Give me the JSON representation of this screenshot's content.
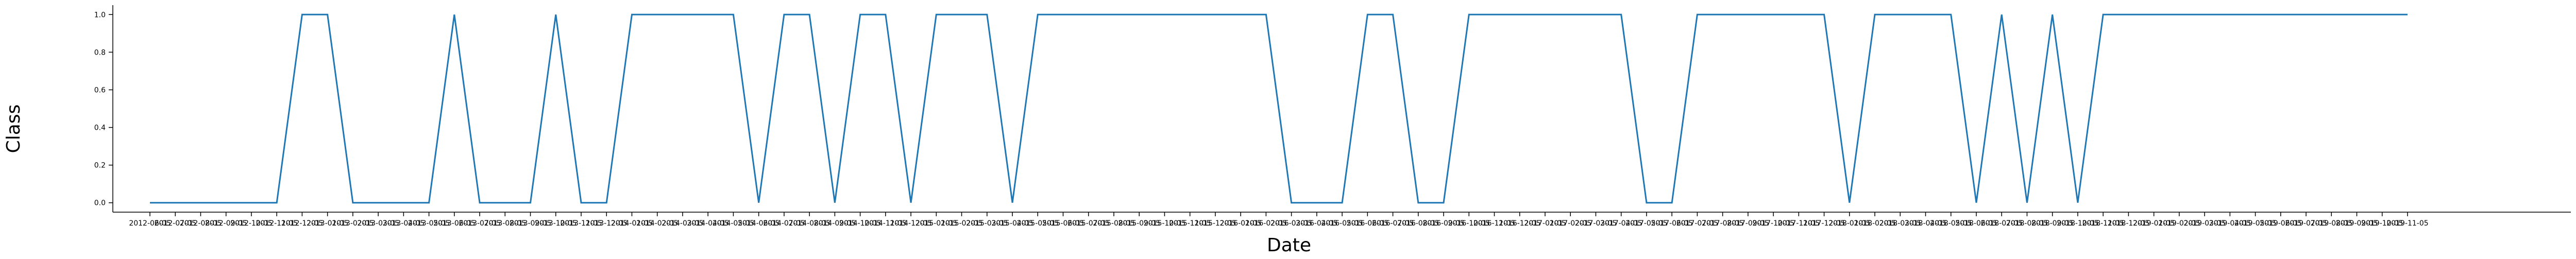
{
  "chart_data": {
    "type": "line",
    "x_label": "Date",
    "y_label": "Class",
    "categories": [
      "2012-06-05",
      "2012-07-05",
      "2012-08-05",
      "2012-09-05",
      "2012-10-05",
      "2012-11-05",
      "2012-12-05",
      "2013-01-05",
      "2013-02-05",
      "2013-03-05",
      "2013-04-05",
      "2013-05-05",
      "2013-06-05",
      "2013-07-05",
      "2013-08-05",
      "2013-09-05",
      "2013-10-05",
      "2013-11-05",
      "2013-12-05",
      "2014-01-05",
      "2014-02-05",
      "2014-03-05",
      "2014-04-05",
      "2014-05-05",
      "2014-06-05",
      "2014-07-05",
      "2014-08-05",
      "2014-09-05",
      "2014-10-05",
      "2014-11-05",
      "2014-12-05",
      "2015-01-05",
      "2015-02-05",
      "2015-03-05",
      "2015-04-05",
      "2015-05-05",
      "2015-06-05",
      "2015-07-05",
      "2015-08-05",
      "2015-09-05",
      "2015-10-05",
      "2015-11-05",
      "2015-12-05",
      "2016-01-05",
      "2016-02-05",
      "2016-03-05",
      "2016-04-05",
      "2016-05-05",
      "2016-06-05",
      "2016-07-05",
      "2016-08-05",
      "2016-09-05",
      "2016-10-05",
      "2016-11-05",
      "2016-12-05",
      "2017-01-05",
      "2017-02-05",
      "2017-03-05",
      "2017-04-05",
      "2017-05-05",
      "2017-06-05",
      "2017-07-05",
      "2017-08-05",
      "2017-09-05",
      "2017-10-05",
      "2017-11-05",
      "2017-12-05",
      "2018-01-05",
      "2018-02-05",
      "2018-03-05",
      "2018-04-05",
      "2018-05-05",
      "2018-06-05",
      "2018-07-05",
      "2018-08-05",
      "2018-09-05",
      "2018-10-05",
      "2018-11-05",
      "2018-12-05",
      "2019-01-05",
      "2019-02-05",
      "2019-03-05",
      "2019-04-05",
      "2019-05-05",
      "2019-06-05",
      "2019-07-05",
      "2019-08-05",
      "2019-09-05",
      "2019-10-05",
      "2019-11-05"
    ],
    "series": [
      {
        "name": "Class",
        "color": "#1f77b4",
        "values": [
          0,
          0,
          0,
          0,
          0,
          0,
          1,
          1,
          0,
          0,
          0,
          0,
          1,
          0,
          0,
          0,
          1,
          0,
          0,
          1,
          1,
          1,
          1,
          1,
          0,
          1,
          1,
          0,
          1,
          1,
          0,
          1,
          1,
          1,
          0,
          1,
          1,
          1,
          1,
          1,
          1,
          1,
          1,
          1,
          1,
          0,
          0,
          0,
          1,
          1,
          0,
          0,
          1,
          1,
          1,
          1,
          1,
          1,
          1,
          0,
          0,
          1,
          1,
          1,
          1,
          1,
          1,
          0,
          1,
          1,
          1,
          1,
          0,
          1,
          0,
          1,
          0,
          1,
          1,
          1,
          1,
          1,
          1,
          1,
          1,
          1,
          1,
          1,
          1,
          1
        ]
      }
    ],
    "ylim": [
      -0.05,
      1.05
    ],
    "yticks": [
      {
        "value": 0,
        "label": "0.0"
      },
      {
        "value": 0.2,
        "label": "0.2"
      },
      {
        "value": 0.4,
        "label": "0.4"
      },
      {
        "value": 0.6,
        "label": "0.6"
      },
      {
        "value": 0.8,
        "label": "0.8"
      },
      {
        "value": 1,
        "label": "1.0"
      }
    ]
  }
}
